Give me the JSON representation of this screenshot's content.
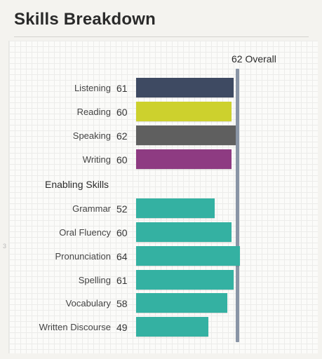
{
  "header": {
    "title": "Skills Breakdown"
  },
  "chart_data": {
    "type": "bar",
    "orientation": "horizontal",
    "overall_label": "62 Overall",
    "overall_value": 62,
    "xlim": [
      10,
      90
    ],
    "grid": true,
    "sections": [
      {
        "name": "",
        "categories": [
          "Listening",
          "Reading",
          "Speaking",
          "Writing"
        ],
        "values": [
          61,
          60,
          62,
          60
        ],
        "colors": [
          "#3e4a62",
          "#cdd12d",
          "#5f5f5f",
          "#8e3b82"
        ]
      },
      {
        "name": "Enabling Skills",
        "categories": [
          "Grammar",
          "Oral Fluency",
          "Pronunciation",
          "Spelling",
          "Vocabulary",
          "Written Discourse"
        ],
        "values": [
          52,
          60,
          64,
          61,
          58,
          49
        ],
        "colors": [
          "#34b1a2",
          "#34b1a2",
          "#34b1a2",
          "#34b1a2",
          "#34b1a2",
          "#34b1a2"
        ]
      }
    ]
  },
  "side_mark": "3"
}
